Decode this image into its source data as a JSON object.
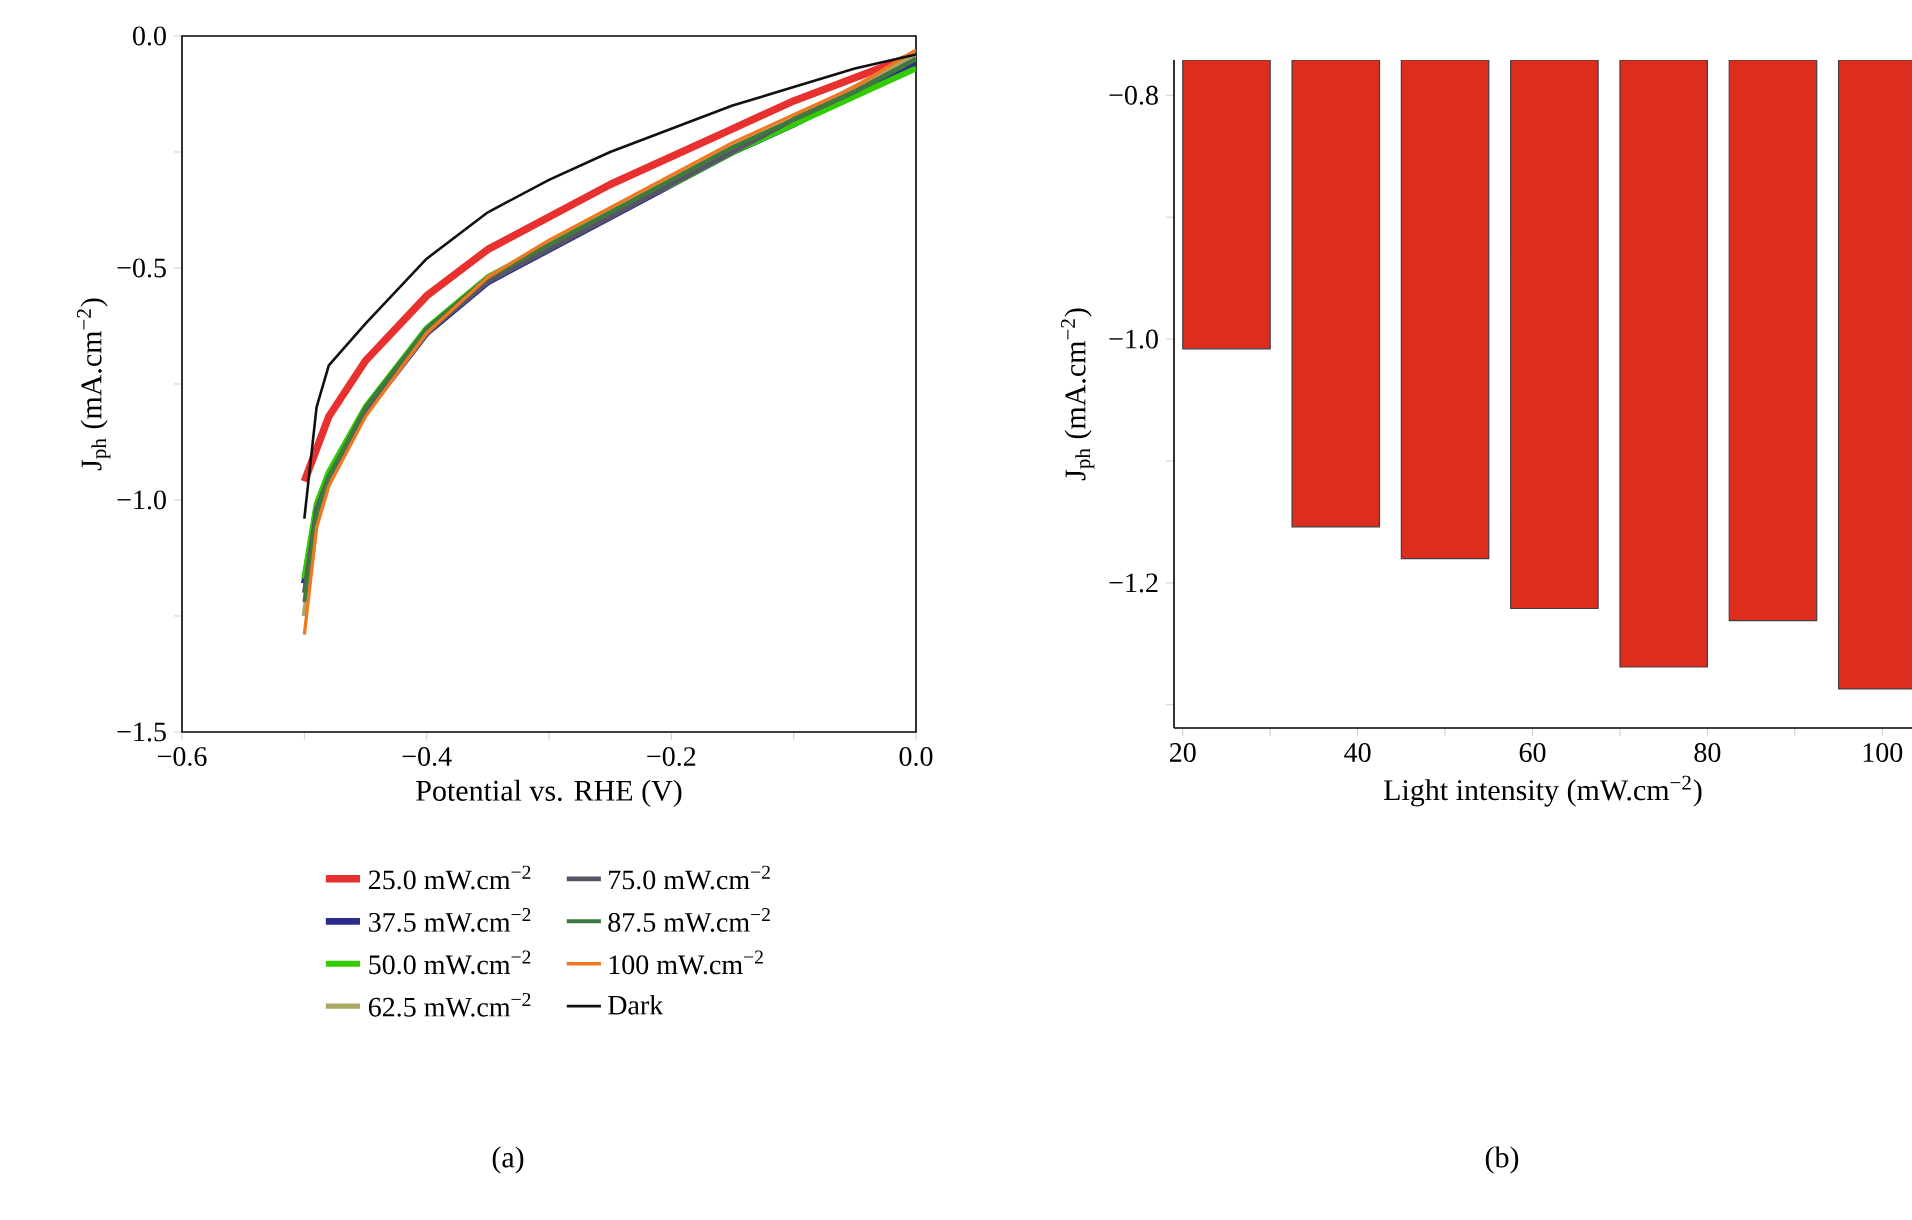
{
  "chart_data": [
    {
      "type": "line",
      "xlabel": "Potential vs. RHE (V)",
      "ylabel": "J$_{ph}$ (mA.cm$^{−2}$)",
      "xlim": [
        -0.6,
        0.0
      ],
      "ylim": [
        -1.5,
        0.0
      ],
      "xticks": [
        {
          "value": -0.6,
          "label": "−0.6"
        },
        {
          "value": -0.5,
          "label": null
        },
        {
          "value": -0.4,
          "label": "−0.4"
        },
        {
          "value": -0.3,
          "label": null
        },
        {
          "value": -0.2,
          "label": "−0.2"
        },
        {
          "value": -0.1,
          "label": null
        },
        {
          "value": 0.0,
          "label": "0.0"
        }
      ],
      "yticks": [
        {
          "value": -1.5,
          "label": "−1.5"
        },
        {
          "value": -1.25,
          "label": null
        },
        {
          "value": -1.0,
          "label": "−1.0"
        },
        {
          "value": -0.75,
          "label": null
        },
        {
          "value": -0.5,
          "label": "−0.5"
        },
        {
          "value": -0.25,
          "label": null
        },
        {
          "value": 0.0,
          "label": "0.0"
        }
      ],
      "legend": "bottom",
      "annotations": [
        "(a)"
      ],
      "series": [
        {
          "name": "25.0 mW.cm$^{−2}$",
          "color": "#e8312e",
          "x": [
            -0.5,
            -0.49,
            -0.48,
            -0.45,
            -0.4,
            -0.35,
            -0.3,
            -0.25,
            -0.2,
            -0.15,
            -0.1,
            -0.05,
            0.0
          ],
          "values": [
            -0.96,
            -0.89,
            -0.82,
            -0.7,
            -0.56,
            -0.46,
            -0.39,
            -0.32,
            -0.26,
            -0.2,
            -0.14,
            -0.09,
            -0.04
          ]
        },
        {
          "name": "37.5 mW.cm$^{−2}$",
          "color": "#2b2b8f",
          "x": [
            -0.5,
            -0.49,
            -0.48,
            -0.45,
            -0.4,
            -0.35,
            -0.3,
            -0.25,
            -0.2,
            -0.15,
            -0.1,
            -0.05,
            0.0
          ],
          "values": [
            -1.18,
            -1.02,
            -0.95,
            -0.81,
            -0.64,
            -0.53,
            -0.46,
            -0.39,
            -0.32,
            -0.25,
            -0.19,
            -0.12,
            -0.06
          ]
        },
        {
          "name": "50.0 mW.cm$^{−2}$",
          "color": "#33cc00",
          "x": [
            -0.5,
            -0.49,
            -0.48,
            -0.45,
            -0.4,
            -0.35,
            -0.3,
            -0.25,
            -0.2,
            -0.15,
            -0.1,
            -0.05,
            0.0
          ],
          "values": [
            -1.17,
            -1.01,
            -0.94,
            -0.8,
            -0.63,
            -0.52,
            -0.45,
            -0.38,
            -0.32,
            -0.25,
            -0.19,
            -0.13,
            -0.07
          ]
        },
        {
          "name": "62.5 mW.cm$^{−2}$",
          "color": "#a8a860",
          "x": [
            -0.5,
            -0.49,
            -0.48,
            -0.45,
            -0.4,
            -0.35,
            -0.3,
            -0.25,
            -0.2,
            -0.15,
            -0.1,
            -0.05,
            0.0
          ],
          "values": [
            -1.25,
            -1.04,
            -0.96,
            -0.81,
            -0.64,
            -0.52,
            -0.45,
            -0.38,
            -0.31,
            -0.24,
            -0.18,
            -0.11,
            -0.04
          ]
        },
        {
          "name": "75.0 mW.cm$^{−2}$",
          "color": "#555566",
          "x": [
            -0.5,
            -0.49,
            -0.48,
            -0.45,
            -0.4,
            -0.35,
            -0.3,
            -0.25,
            -0.2,
            -0.15,
            -0.1,
            -0.05,
            0.0
          ],
          "values": [
            -1.2,
            -1.02,
            -0.95,
            -0.81,
            -0.64,
            -0.53,
            -0.46,
            -0.39,
            -0.32,
            -0.25,
            -0.18,
            -0.12,
            -0.05
          ]
        },
        {
          "name": "87.5 mW.cm$^{−2}$",
          "color": "#3d7a3d",
          "x": [
            -0.5,
            -0.49,
            -0.48,
            -0.45,
            -0.4,
            -0.35,
            -0.3,
            -0.25,
            -0.2,
            -0.15,
            -0.1,
            -0.05,
            0.0
          ],
          "values": [
            -1.22,
            -1.03,
            -0.95,
            -0.8,
            -0.63,
            -0.52,
            -0.45,
            -0.38,
            -0.31,
            -0.24,
            -0.18,
            -0.12,
            -0.05
          ]
        },
        {
          "name": "100 mW.cm$^{−2}$",
          "color": "#f07820",
          "x": [
            -0.5,
            -0.49,
            -0.48,
            -0.45,
            -0.4,
            -0.35,
            -0.3,
            -0.25,
            -0.2,
            -0.15,
            -0.1,
            -0.05,
            0.0
          ],
          "values": [
            -1.29,
            -1.06,
            -0.97,
            -0.82,
            -0.64,
            -0.52,
            -0.44,
            -0.37,
            -0.3,
            -0.23,
            -0.17,
            -0.11,
            -0.03
          ]
        },
        {
          "name": "Dark",
          "color": "#111111",
          "x": [
            -0.5,
            -0.49,
            -0.48,
            -0.45,
            -0.4,
            -0.35,
            -0.3,
            -0.25,
            -0.2,
            -0.15,
            -0.1,
            -0.05,
            0.0
          ],
          "values": [
            -1.04,
            -0.8,
            -0.71,
            -0.62,
            -0.48,
            -0.38,
            -0.31,
            -0.25,
            -0.2,
            -0.15,
            -0.11,
            -0.07,
            -0.04
          ]
        }
      ]
    },
    {
      "type": "bar",
      "xlabel": "Light intensity (mW.cm$^{−2}$)",
      "ylabel": "J$_{ph}$ (mA.cm$^{−2}$)",
      "xlim": [
        19,
        103.4
      ],
      "ylim": [
        -1.319,
        -0.771
      ],
      "xticks": [
        20,
        {
          "value": 30,
          "label": null
        },
        40,
        {
          "value": 50,
          "label": null
        },
        60,
        {
          "value": 70,
          "label": null
        },
        80,
        {
          "value": 90,
          "label": null
        },
        100
      ],
      "yticks": [
        {
          "value": -1.3,
          "label": null
        },
        {
          "value": -1.2,
          "label": "−1.2"
        },
        {
          "value": -1.1,
          "label": null
        },
        {
          "value": -1.0,
          "label": "−1.0"
        },
        {
          "value": -0.9,
          "label": null
        },
        {
          "value": -0.8,
          "label": "−0.8"
        }
      ],
      "annotations": [
        "(b)"
      ],
      "x": [
        25,
        37.5,
        50,
        62.5,
        75,
        87.5,
        100
      ],
      "values": [
        -1.008,
        -1.154,
        -1.18,
        -1.221,
        -1.269,
        -1.231,
        -1.287
      ],
      "color": "#dc2d1e"
    }
  ]
}
